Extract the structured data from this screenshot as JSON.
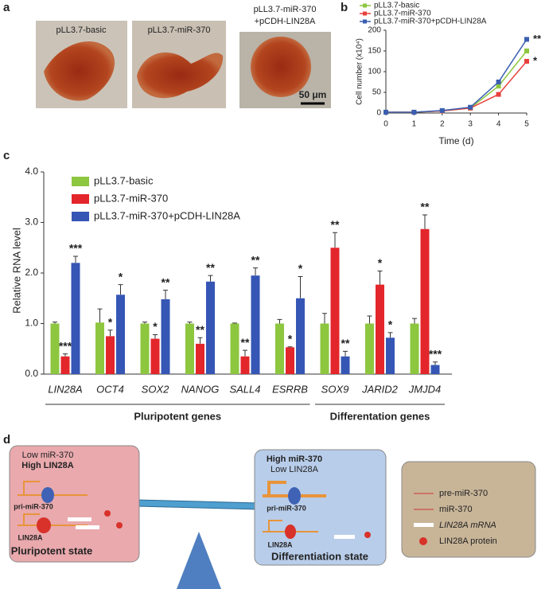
{
  "panel_labels": [
    "a",
    "b",
    "c",
    "d"
  ],
  "photos": [
    {
      "label_lines": [
        "pLL3.7-basic"
      ]
    },
    {
      "label_lines": [
        "pLL3.7-miR-370"
      ]
    },
    {
      "label_lines": [
        "pLL3.7-miR-370",
        "+pCDH-LIN28A"
      ]
    }
  ],
  "scale_bar": "50 μm",
  "chart_data": [
    {
      "type": "line",
      "x_label": "Time (d)",
      "y_label": "Cell number (x10⁴)",
      "x": [
        0,
        1,
        2,
        3,
        4,
        5
      ],
      "xlim": [
        0,
        5
      ],
      "xticks": [
        0,
        1,
        2,
        3,
        4,
        5
      ],
      "ylim": [
        0,
        200
      ],
      "yticks": [
        0,
        50,
        100,
        150,
        200
      ],
      "series": [
        {
          "name": "pLL3.7-basic",
          "color": "#8dc63f",
          "values": [
            2,
            2,
            5,
            12,
            65,
            150
          ]
        },
        {
          "name": "pLL3.7-miR-370",
          "color": "#e8413c",
          "values": [
            2,
            2,
            5,
            12,
            45,
            125
          ],
          "significance": "*"
        },
        {
          "name": "pLL3.7-miR-370+pCDH-LIN28A",
          "color": "#3a5fb0",
          "values": [
            2,
            2,
            6,
            14,
            75,
            178
          ],
          "significance": "**"
        }
      ]
    },
    {
      "type": "bar",
      "y_label": "Relative RNA level",
      "categories": [
        "LIN28A",
        "OCT4",
        "SOX2",
        "NANOG",
        "SALL4",
        "ESRRB",
        "SOX9",
        "JARID2",
        "JMJD4"
      ],
      "ylim": [
        0,
        4
      ],
      "yticks": [
        {
          "value": 0,
          "label": "0.0"
        },
        {
          "value": 1,
          "label": "1.0"
        },
        {
          "value": 2,
          "label": "2.0"
        },
        {
          "value": 3,
          "label": "3.0"
        },
        {
          "value": 4,
          "label": "4.0"
        }
      ],
      "series": [
        {
          "name": "pLL3.7-basic",
          "color": "#8dc63f",
          "values": [
            1,
            1.02,
            1,
            1,
            1,
            1,
            1,
            1,
            1
          ],
          "errors": [
            0.03,
            0.27,
            0.03,
            0.03,
            0.01,
            0.08,
            0.2,
            0.15,
            0.1
          ]
        },
        {
          "name": "pLL3.7-miR-370",
          "color": "#e3262b",
          "values": [
            0.35,
            0.75,
            0.7,
            0.6,
            0.35,
            0.53,
            2.5,
            1.77,
            2.87
          ],
          "errors": [
            0.05,
            0.12,
            0.08,
            0.12,
            0.12,
            0.01,
            0.3,
            0.27,
            0.28
          ],
          "significance": [
            "***",
            "*",
            "*",
            "**",
            "**",
            "*",
            "**",
            "*",
            "**"
          ]
        },
        {
          "name": "pLL3.7-miR-370+pCDH-LIN28A",
          "color": "#3556b5",
          "values": [
            2.2,
            1.57,
            1.48,
            1.83,
            1.95,
            1.5,
            0.35,
            0.72,
            0.18
          ],
          "errors": [
            0.13,
            0.2,
            0.18,
            0.12,
            0.15,
            0.43,
            0.1,
            0.1,
            0.06
          ],
          "significance": [
            "***",
            "*",
            "**",
            "**",
            "**",
            "*",
            "**",
            "*",
            "***"
          ]
        }
      ],
      "groups": [
        {
          "label": "Pluripotent genes"
        },
        {
          "label": "Differentation genes"
        }
      ]
    }
  ],
  "diagram": {
    "pluripotent": {
      "line1": "Low miR-370",
      "line2": "High LIN28A",
      "pri": "pri-miR-370",
      "protein": "LIN28A",
      "state": "Pluripotent state"
    },
    "differentiation": {
      "line1": "High miR-370",
      "line2": "Low LIN28A",
      "pri": "pri-miR-370",
      "protein": "LIN28A",
      "state": "Differentiation state"
    },
    "legend": [
      "pre-miR-370",
      "miR-370",
      "LIN28A mRNA",
      "LIN28A protein"
    ]
  }
}
